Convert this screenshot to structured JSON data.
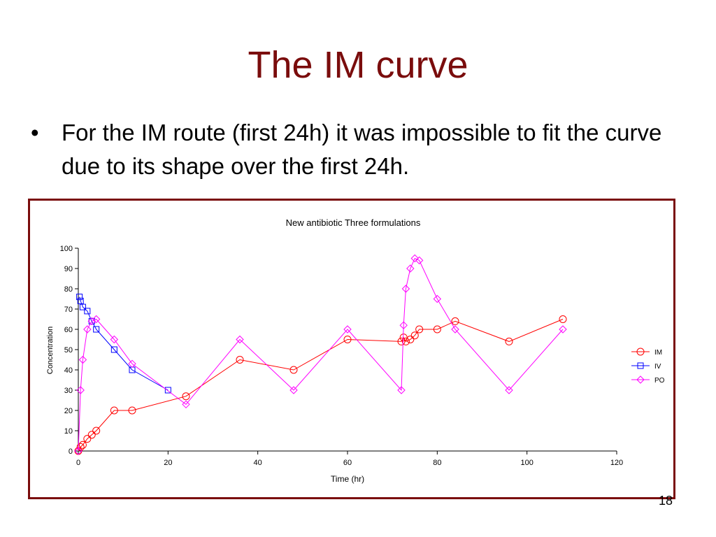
{
  "slide": {
    "title": "The IM curve",
    "bullet": "For the IM route (first 24h) it was impossible to fit the curve due to its shape over the first 24h.",
    "page_number": "18"
  },
  "chart_data": {
    "type": "line",
    "title": "New antibiotic Three formulations",
    "xlabel": "Time (hr)",
    "ylabel": "Concentration",
    "xlim": [
      0,
      120
    ],
    "ylim": [
      0,
      100
    ],
    "xticks": [
      0,
      20,
      40,
      60,
      80,
      100,
      120
    ],
    "yticks": [
      0,
      10,
      20,
      30,
      40,
      50,
      60,
      70,
      80,
      90,
      100
    ],
    "grid": false,
    "legend": "right",
    "series": [
      {
        "name": "IM",
        "color": "#ff0000",
        "marker": "circle",
        "points": [
          [
            0,
            0
          ],
          [
            0.5,
            2
          ],
          [
            1,
            3
          ],
          [
            2,
            6
          ],
          [
            3,
            8
          ],
          [
            4,
            10
          ],
          [
            8,
            20
          ],
          [
            12,
            20
          ],
          [
            24,
            27
          ],
          [
            36,
            45
          ],
          [
            48,
            40
          ],
          [
            60,
            55
          ],
          [
            72,
            54
          ],
          [
            72.5,
            56
          ],
          [
            73,
            54
          ],
          [
            74,
            55
          ],
          [
            75,
            57
          ],
          [
            76,
            60
          ],
          [
            80,
            60
          ],
          [
            84,
            64
          ],
          [
            96,
            54
          ],
          [
            108,
            65
          ]
        ]
      },
      {
        "name": "IV",
        "color": "#0000ff",
        "marker": "square",
        "points": [
          [
            0.25,
            76
          ],
          [
            0.5,
            74
          ],
          [
            1,
            71
          ],
          [
            2,
            69
          ],
          [
            3,
            64
          ],
          [
            4,
            60
          ],
          [
            8,
            50
          ],
          [
            12,
            40
          ],
          [
            20,
            30
          ]
        ]
      },
      {
        "name": "PO",
        "color": "#ff00ff",
        "marker": "diamond",
        "points": [
          [
            0,
            0
          ],
          [
            0.5,
            30
          ],
          [
            1,
            45
          ],
          [
            2,
            60
          ],
          [
            3,
            64
          ],
          [
            4,
            65
          ],
          [
            8,
            55
          ],
          [
            12,
            43
          ],
          [
            24,
            23
          ],
          [
            36,
            55
          ],
          [
            48,
            30
          ],
          [
            60,
            60
          ],
          [
            72,
            30
          ],
          [
            72.5,
            62
          ],
          [
            73,
            80
          ],
          [
            74,
            90
          ],
          [
            75,
            95
          ],
          [
            76,
            94
          ],
          [
            80,
            75
          ],
          [
            84,
            60
          ],
          [
            96,
            30
          ],
          [
            108,
            60
          ]
        ]
      }
    ]
  }
}
